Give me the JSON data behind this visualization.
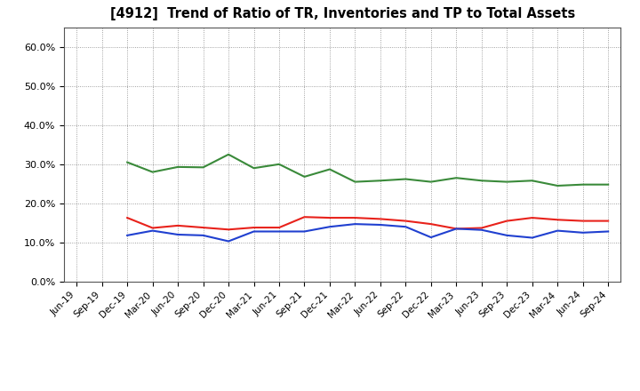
{
  "title": "[4912]  Trend of Ratio of TR, Inventories and TP to Total Assets",
  "x_labels": [
    "Jun-19",
    "Sep-19",
    "Dec-19",
    "Mar-20",
    "Jun-20",
    "Sep-20",
    "Dec-20",
    "Mar-21",
    "Jun-21",
    "Sep-21",
    "Dec-21",
    "Mar-22",
    "Jun-22",
    "Sep-22",
    "Dec-22",
    "Mar-23",
    "Jun-23",
    "Sep-23",
    "Dec-23",
    "Mar-24",
    "Jun-24",
    "Sep-24"
  ],
  "trade_receivables": [
    null,
    null,
    0.163,
    0.137,
    0.143,
    0.138,
    0.133,
    0.138,
    0.138,
    0.165,
    0.163,
    0.163,
    0.16,
    0.155,
    0.147,
    0.135,
    0.137,
    0.155,
    0.163,
    0.158,
    0.155,
    0.155
  ],
  "inventories": [
    null,
    null,
    0.118,
    0.13,
    0.12,
    0.118,
    0.103,
    0.128,
    0.128,
    0.128,
    0.14,
    0.147,
    0.145,
    0.14,
    0.113,
    0.135,
    0.132,
    0.118,
    0.112,
    0.13,
    0.125,
    0.128
  ],
  "trade_payables": [
    null,
    null,
    0.305,
    0.28,
    0.293,
    0.292,
    0.325,
    0.29,
    0.3,
    0.268,
    0.287,
    0.255,
    0.258,
    0.262,
    0.255,
    0.265,
    0.258,
    0.255,
    0.258,
    0.245,
    0.248,
    0.248
  ],
  "tr_color": "#e8221b",
  "inv_color": "#2040d0",
  "tp_color": "#3a8a3a",
  "ylim": [
    0.0,
    0.65
  ],
  "yticks": [
    0.0,
    0.1,
    0.2,
    0.3,
    0.4,
    0.5,
    0.6
  ],
  "background_color": "#ffffff",
  "grid_color": "#888888"
}
